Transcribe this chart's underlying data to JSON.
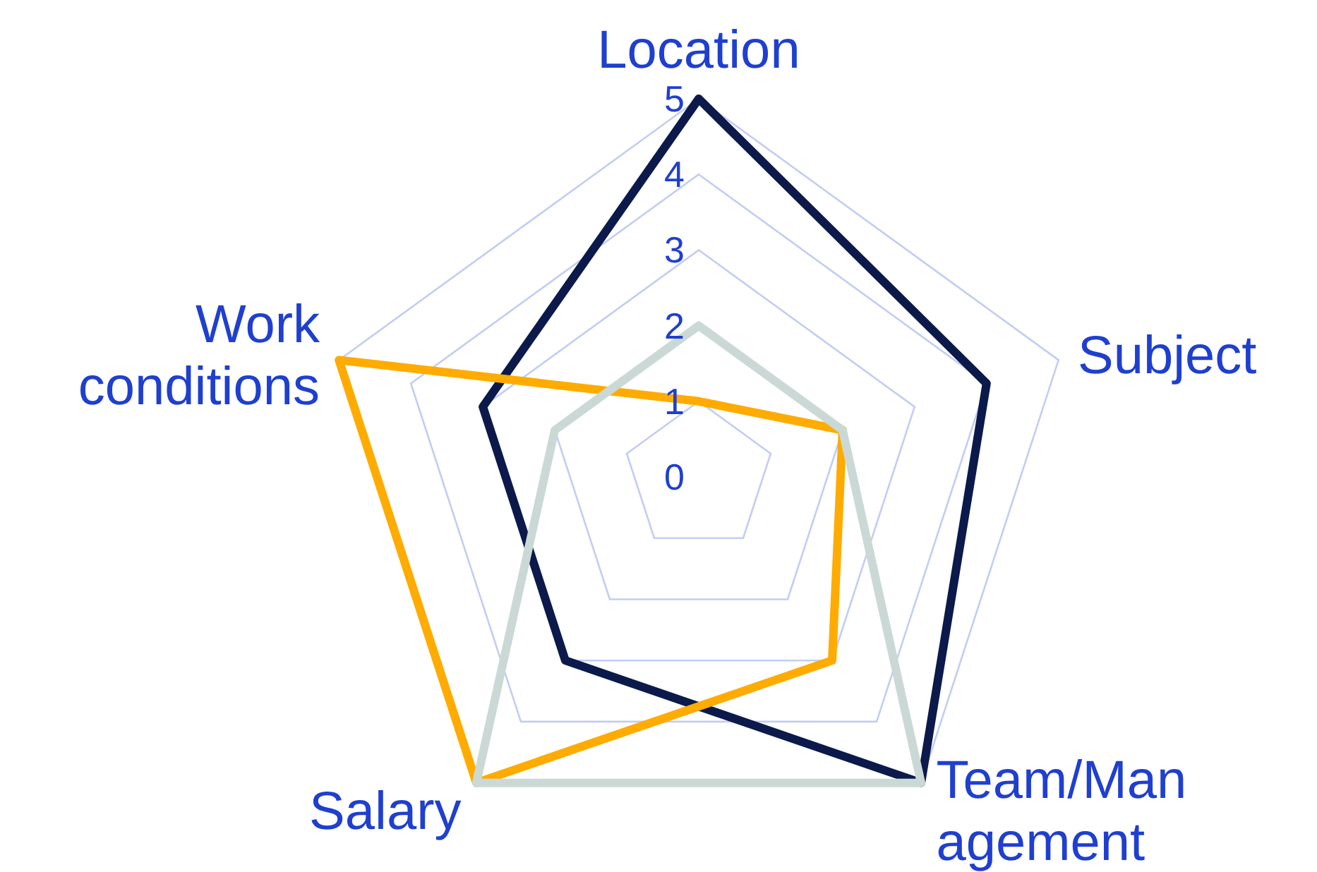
{
  "chart_data": {
    "type": "radar",
    "categories": [
      "Location",
      "Subject",
      "Team/Management",
      "Salary",
      "Work conditions"
    ],
    "series": [
      {
        "color": "#0b1a4a",
        "values": [
          5,
          4,
          5,
          3,
          3
        ]
      },
      {
        "color": "#ffab00",
        "values": [
          1,
          2,
          3,
          5,
          5
        ]
      },
      {
        "color": "#cad9d6",
        "values": [
          2,
          2,
          5,
          5,
          2
        ]
      }
    ],
    "ylim": [
      0,
      5
    ],
    "yticks": [
      0,
      1,
      2,
      3,
      4,
      5
    ],
    "grid": true,
    "marker": "none",
    "line_style": "solid",
    "legend": false
  }
}
